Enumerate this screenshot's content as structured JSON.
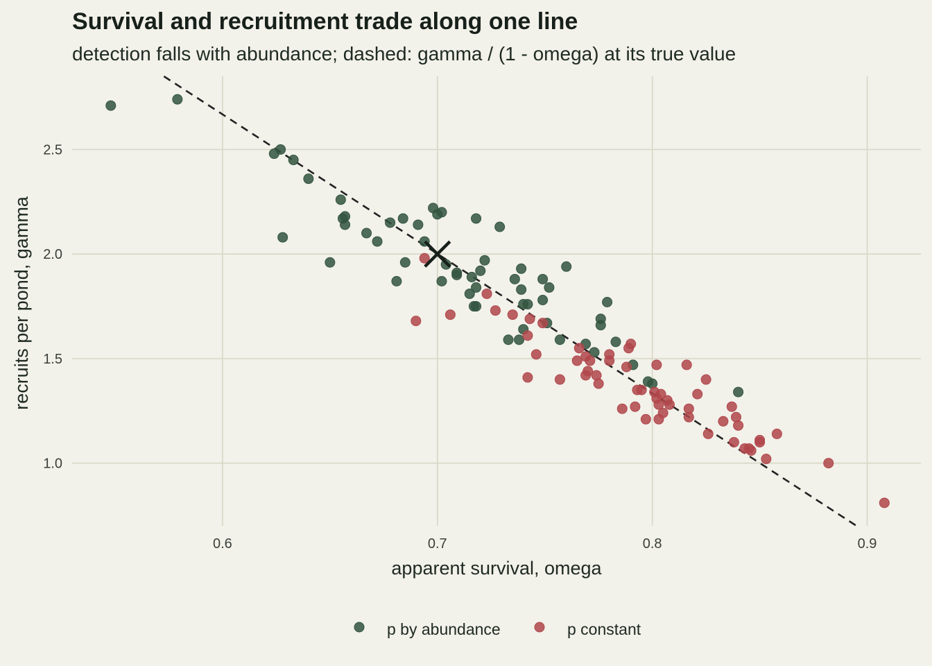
{
  "chart_data": {
    "type": "scatter",
    "title": "Survival and recruitment trade along one line",
    "subtitle": "detection falls with abundance; dashed: gamma / (1 - omega) at its true value",
    "xlabel": "apparent survival, omega",
    "ylabel": "recruits per pond, gamma",
    "xlim": [
      0.53,
      0.925
    ],
    "ylim": [
      0.7,
      2.85
    ],
    "x_ticks": [
      0.6,
      0.7,
      0.8,
      0.9
    ],
    "x_tick_labels": [
      "0.6",
      "0.7",
      "0.8",
      "0.9"
    ],
    "y_ticks": [
      1.0,
      1.5,
      2.0,
      2.5
    ],
    "y_tick_labels": [
      "1.0",
      "1.5",
      "2.0",
      "2.5"
    ],
    "grid": true,
    "legend_position": "bottom",
    "reference_line": {
      "style": "dashed",
      "color": "#222222",
      "intercept": 6.67,
      "slope": -6.67
    },
    "true_value_marker": {
      "shape": "x",
      "x": 0.7,
      "y": 2.0,
      "color": "#17201a"
    },
    "series": [
      {
        "name": "p by abundance",
        "color": "#33553f",
        "points": [
          [
            0.548,
            2.71
          ],
          [
            0.579,
            2.74
          ],
          [
            0.624,
            2.48
          ],
          [
            0.627,
            2.5
          ],
          [
            0.633,
            2.45
          ],
          [
            0.628,
            2.08
          ],
          [
            0.64,
            2.36
          ],
          [
            0.65,
            1.96
          ],
          [
            0.655,
            2.26
          ],
          [
            0.656,
            2.17
          ],
          [
            0.657,
            2.18
          ],
          [
            0.657,
            2.14
          ],
          [
            0.667,
            2.1
          ],
          [
            0.672,
            2.06
          ],
          [
            0.678,
            2.15
          ],
          [
            0.681,
            1.87
          ],
          [
            0.684,
            2.17
          ],
          [
            0.685,
            1.96
          ],
          [
            0.691,
            2.14
          ],
          [
            0.694,
            2.06
          ],
          [
            0.698,
            2.22
          ],
          [
            0.7,
            2.19
          ],
          [
            0.702,
            2.2
          ],
          [
            0.702,
            1.87
          ],
          [
            0.704,
            1.95
          ],
          [
            0.709,
            1.91
          ],
          [
            0.709,
            1.9
          ],
          [
            0.715,
            1.81
          ],
          [
            0.716,
            1.89
          ],
          [
            0.717,
            1.75
          ],
          [
            0.718,
            1.75
          ],
          [
            0.718,
            1.84
          ],
          [
            0.718,
            2.17
          ],
          [
            0.72,
            1.92
          ],
          [
            0.722,
            1.97
          ],
          [
            0.729,
            2.13
          ],
          [
            0.733,
            1.59
          ],
          [
            0.736,
            1.88
          ],
          [
            0.738,
            1.59
          ],
          [
            0.739,
            1.93
          ],
          [
            0.739,
            1.83
          ],
          [
            0.74,
            1.76
          ],
          [
            0.74,
            1.64
          ],
          [
            0.742,
            1.76
          ],
          [
            0.749,
            1.88
          ],
          [
            0.749,
            1.78
          ],
          [
            0.751,
            1.67
          ],
          [
            0.752,
            1.84
          ],
          [
            0.757,
            1.59
          ],
          [
            0.76,
            1.94
          ],
          [
            0.769,
            1.57
          ],
          [
            0.773,
            1.53
          ],
          [
            0.776,
            1.69
          ],
          [
            0.776,
            1.66
          ],
          [
            0.779,
            1.77
          ],
          [
            0.783,
            1.58
          ],
          [
            0.791,
            1.47
          ],
          [
            0.798,
            1.39
          ],
          [
            0.8,
            1.38
          ],
          [
            0.84,
            1.34
          ]
        ]
      },
      {
        "name": "p constant",
        "color": "#b0474b",
        "points": [
          [
            0.69,
            1.68
          ],
          [
            0.694,
            1.98
          ],
          [
            0.706,
            1.71
          ],
          [
            0.723,
            1.81
          ],
          [
            0.727,
            1.73
          ],
          [
            0.735,
            1.71
          ],
          [
            0.742,
            1.61
          ],
          [
            0.742,
            1.41
          ],
          [
            0.743,
            1.69
          ],
          [
            0.746,
            1.52
          ],
          [
            0.749,
            1.67
          ],
          [
            0.757,
            1.4
          ],
          [
            0.765,
            1.49
          ],
          [
            0.766,
            1.55
          ],
          [
            0.769,
            1.51
          ],
          [
            0.769,
            1.42
          ],
          [
            0.77,
            1.44
          ],
          [
            0.771,
            1.49
          ],
          [
            0.774,
            1.42
          ],
          [
            0.775,
            1.38
          ],
          [
            0.78,
            1.52
          ],
          [
            0.78,
            1.49
          ],
          [
            0.786,
            1.26
          ],
          [
            0.788,
            1.46
          ],
          [
            0.789,
            1.55
          ],
          [
            0.79,
            1.57
          ],
          [
            0.792,
            1.27
          ],
          [
            0.793,
            1.35
          ],
          [
            0.795,
            1.35
          ],
          [
            0.797,
            1.21
          ],
          [
            0.801,
            1.34
          ],
          [
            0.802,
            1.47
          ],
          [
            0.802,
            1.31
          ],
          [
            0.803,
            1.21
          ],
          [
            0.803,
            1.28
          ],
          [
            0.804,
            1.33
          ],
          [
            0.805,
            1.24
          ],
          [
            0.807,
            1.3
          ],
          [
            0.808,
            1.28
          ],
          [
            0.816,
            1.47
          ],
          [
            0.817,
            1.26
          ],
          [
            0.817,
            1.22
          ],
          [
            0.821,
            1.33
          ],
          [
            0.825,
            1.4
          ],
          [
            0.826,
            1.14
          ],
          [
            0.833,
            1.2
          ],
          [
            0.837,
            1.27
          ],
          [
            0.838,
            1.1
          ],
          [
            0.839,
            1.22
          ],
          [
            0.84,
            1.18
          ],
          [
            0.843,
            1.07
          ],
          [
            0.845,
            1.07
          ],
          [
            0.846,
            1.06
          ],
          [
            0.85,
            1.11
          ],
          [
            0.85,
            1.1
          ],
          [
            0.853,
            1.02
          ],
          [
            0.858,
            1.14
          ],
          [
            0.882,
            1.0
          ],
          [
            0.908,
            0.81
          ]
        ]
      }
    ]
  }
}
